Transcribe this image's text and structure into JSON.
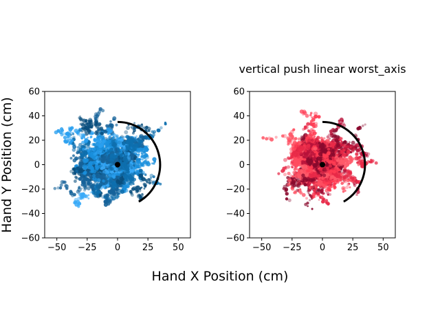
{
  "figure": {
    "xlabel": "Hand X Position (cm)",
    "ylabel": "Hand Y Position (cm)"
  },
  "chart_data": [
    {
      "type": "scatter",
      "title": "",
      "xlim": [
        -60,
        60
      ],
      "ylim": [
        -60,
        60
      ],
      "xticks": [
        "−50",
        "−25",
        "0",
        "25",
        "50"
      ],
      "yticks": [
        "60",
        "40",
        "20",
        "0",
        "−20",
        "−40",
        "−60"
      ],
      "grid": false,
      "palette": [
        "#1a8fdc",
        "#2aa0f0",
        "#0e6fae",
        "#0a4f7e",
        "#3aaaf8",
        "#16639a"
      ],
      "cloud_center": [
        -5,
        2
      ],
      "cloud_spread": [
        22,
        20
      ],
      "origin_marker": [
        0,
        0
      ],
      "arc": {
        "radius": 35,
        "start_deg": -60,
        "end_deg": 90,
        "color": "#000000"
      }
    },
    {
      "type": "scatter",
      "title": "vertical push linear worst_axis",
      "xlim": [
        -60,
        60
      ],
      "ylim": [
        -60,
        60
      ],
      "xticks": [
        "−50",
        "−25",
        "0",
        "25",
        "50"
      ],
      "yticks": [
        "60",
        "40",
        "20",
        "0",
        "−20",
        "−40",
        "−60"
      ],
      "grid": false,
      "palette": [
        "#ff3b52",
        "#e82a48",
        "#ff5a6a",
        "#b8123a",
        "#8a0a2e",
        "#ff4d60"
      ],
      "cloud_center": [
        -2,
        3
      ],
      "cloud_spread": [
        24,
        21
      ],
      "origin_marker": [
        0,
        0
      ],
      "arc": {
        "radius": 35,
        "start_deg": -60,
        "end_deg": 90,
        "color": "#000000"
      }
    }
  ]
}
